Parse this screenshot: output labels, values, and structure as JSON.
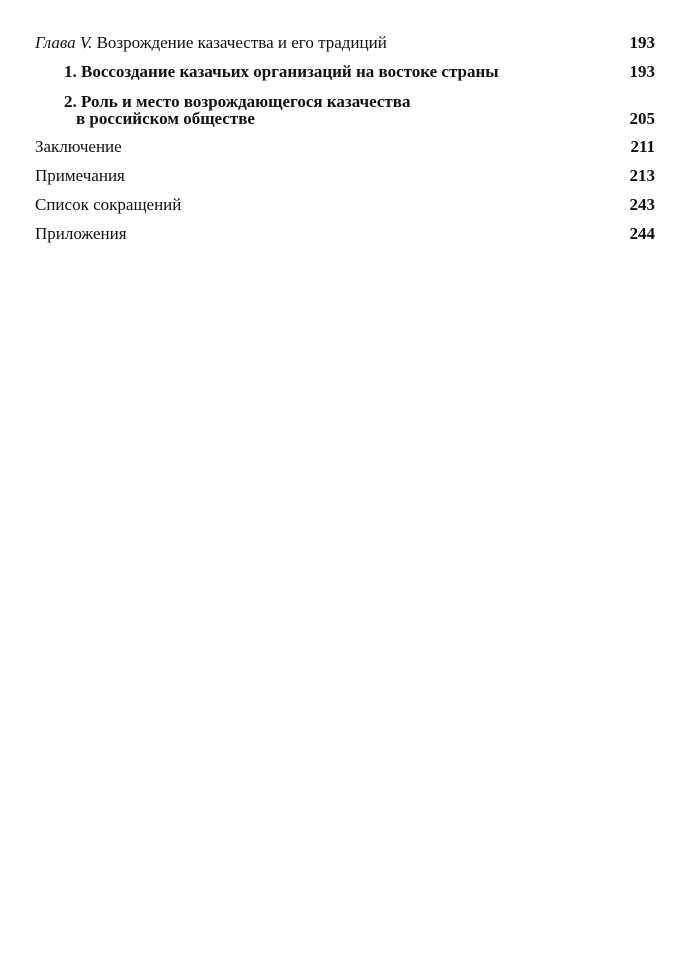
{
  "toc": [
    {
      "prefix": "Глава V.",
      "title": "Возрождение казачества и его традиций",
      "page": "193"
    },
    {
      "title": "1. Воссоздание казачьих организаций на востоке страны",
      "page": "193"
    },
    {
      "title_line1": "2. Роль и место возрождающегося казачества",
      "title_line2": "в российском обществе",
      "page": "205"
    },
    {
      "title": "Заключение",
      "page": "211"
    },
    {
      "title": "Примечания",
      "page": "213"
    },
    {
      "title": "Список сокращений",
      "page": "243"
    },
    {
      "title": "Приложения",
      "page": "244"
    }
  ]
}
